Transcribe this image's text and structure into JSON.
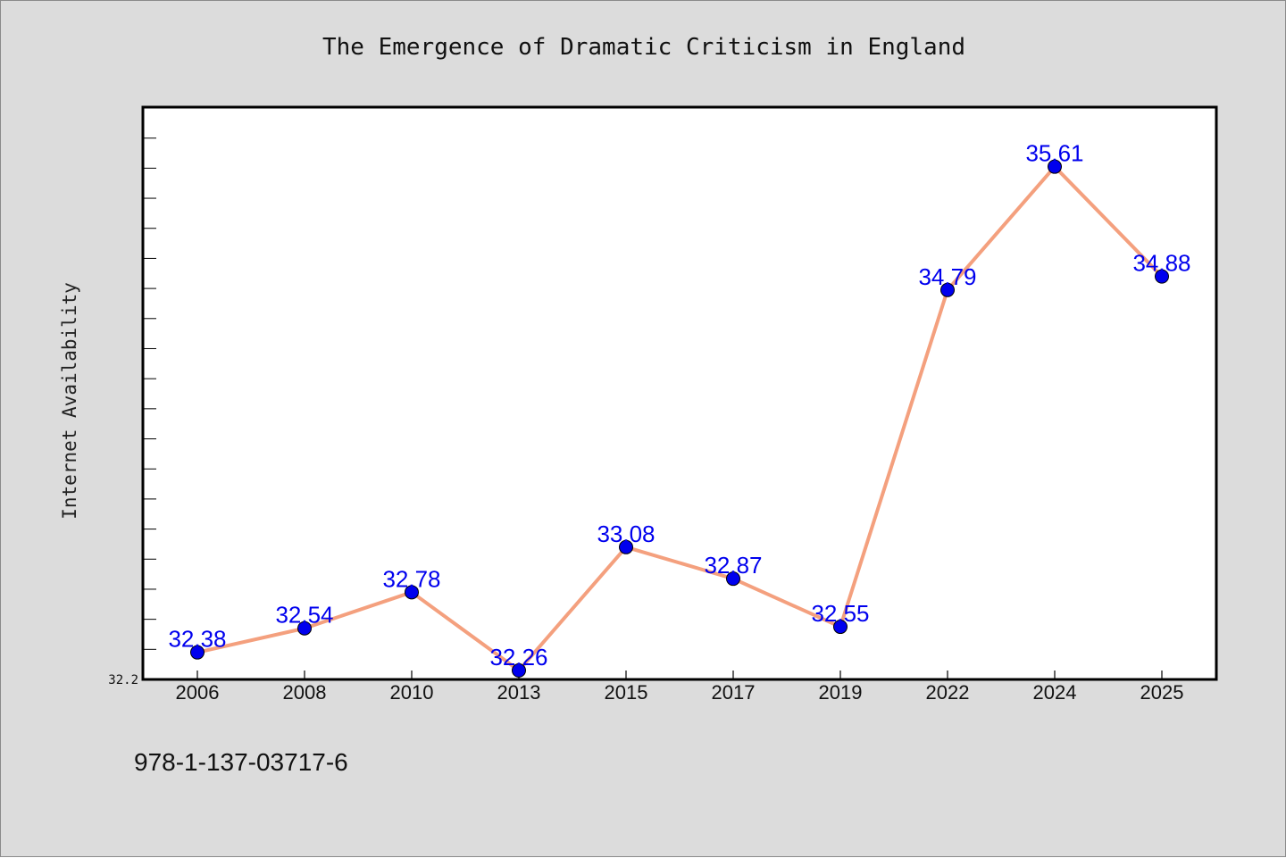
{
  "chart_data": {
    "type": "line",
    "title": "The Emergence of Dramatic Criticism in England",
    "xlabel": "",
    "ylabel": "Internet Availability",
    "categories": [
      "2006",
      "2008",
      "2010",
      "2013",
      "2015",
      "2017",
      "2019",
      "2022",
      "2024",
      "2025"
    ],
    "series": [
      {
        "values": [
          32.38,
          32.54,
          32.78,
          32.26,
          33.08,
          32.87,
          32.55,
          34.79,
          35.61,
          34.88
        ]
      }
    ],
    "data_labels": [
      "32.38",
      "32.54",
      "32.78",
      "32.26",
      "33.08",
      "32.87",
      "32.55",
      "34.79",
      "35.61",
      "34.88"
    ],
    "ylim": [
      32.2,
      36.0
    ],
    "y_tick_labels": [
      "32.2"
    ],
    "grid": false,
    "line_color": "#f4a07e",
    "marker_color": "#0000ee"
  },
  "footer_text": "978-1-137-03717-6"
}
